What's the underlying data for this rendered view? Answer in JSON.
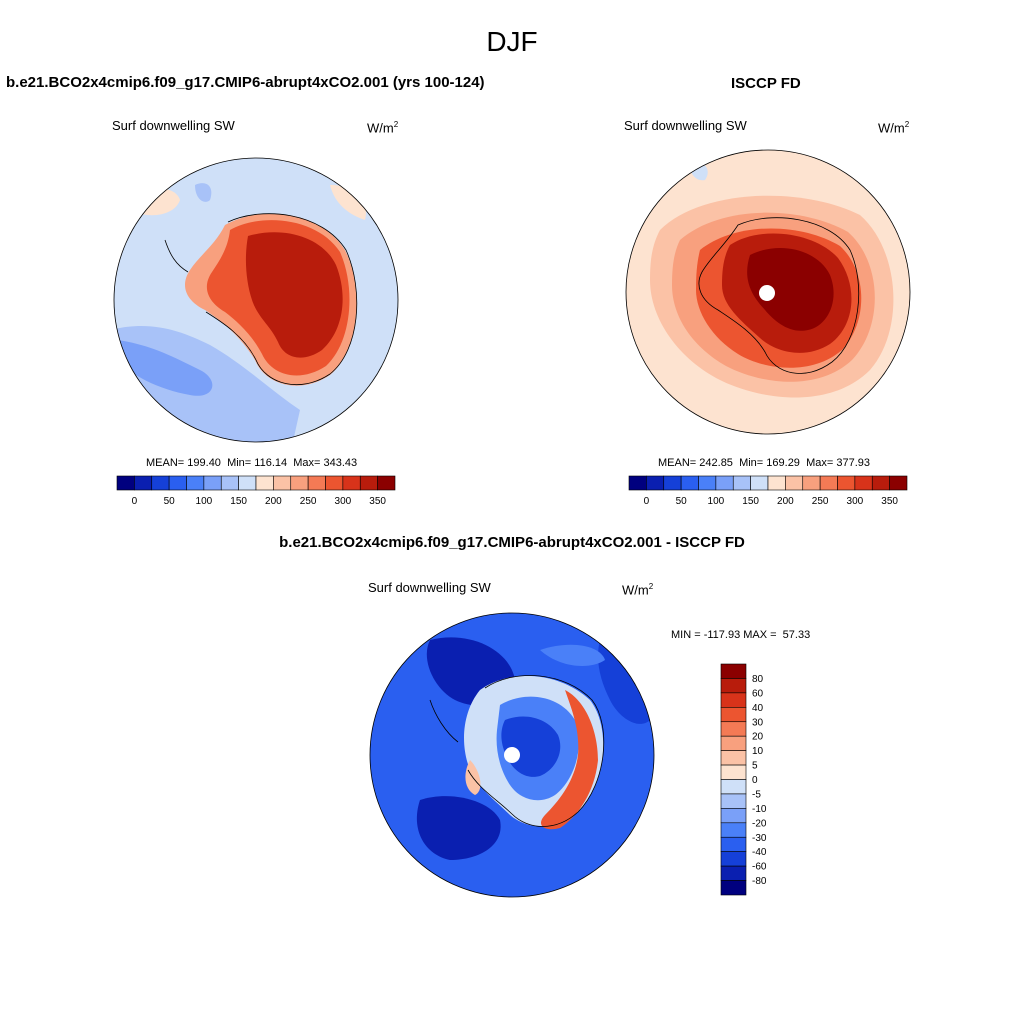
{
  "main_title": "DJF",
  "panels": [
    {
      "title": "b.e21.BCO2x4cmip6.f09_g17.CMIP6-abrupt4xCO2.001 (yrs 100-124)",
      "variable": "Surf downwelling SW",
      "unit": "W/m",
      "unit_sup": "2",
      "stats": {
        "mean_label": "MEAN=",
        "mean": "199.40",
        "min_label": "Min=",
        "min": "116.14",
        "max_label": "Max=",
        "max": "343.43"
      }
    },
    {
      "title": "ISCCP FD",
      "variable": "Surf downwelling SW",
      "unit": "W/m",
      "unit_sup": "2",
      "stats": {
        "mean_label": "MEAN=",
        "mean": "242.85",
        "min_label": "Min=",
        "min": "169.29",
        "max_label": "Max=",
        "max": "377.93"
      }
    },
    {
      "title": "b.e21.BCO2x4cmip6.f09_g17.CMIP6-abrupt4xCO2.001 - ISCCP FD",
      "variable": "Surf downwelling SW",
      "unit": "W/m",
      "unit_sup": "2",
      "stats_text": "MIN = -117.93 MAX =  57.33"
    }
  ],
  "colorbar_abs": {
    "ticks": [
      "0",
      "50",
      "100",
      "150",
      "200",
      "250",
      "300",
      "350"
    ],
    "colors": [
      "#00007f",
      "#0a1fb0",
      "#1540d8",
      "#2a5ff0",
      "#4a80f8",
      "#7aa0f8",
      "#a8c2f8",
      "#cfe0f8",
      "#fde3d0",
      "#fbc2a6",
      "#f8a07e",
      "#f47a55",
      "#ec5530",
      "#d8331a",
      "#b81c0c",
      "#8b0000"
    ]
  },
  "colorbar_diff": {
    "ticks": [
      "80",
      "60",
      "40",
      "30",
      "20",
      "10",
      "5",
      "0",
      "-5",
      "-10",
      "-20",
      "-30",
      "-40",
      "-60",
      "-80"
    ],
    "colors": [
      "#8b0000",
      "#b81c0c",
      "#d8331a",
      "#ec5530",
      "#f47a55",
      "#f8a07e",
      "#fbc2a6",
      "#fde3d0",
      "#cfe0f8",
      "#a8c2f8",
      "#7aa0f8",
      "#4a80f8",
      "#2a5ff0",
      "#1540d8",
      "#0a1fb0",
      "#00007f"
    ]
  },
  "colors": {
    "background": "#ffffff",
    "ocean_light": "#cfe0f8",
    "land_dark_red": "#b81c0c",
    "deep_blue": "#0a1fb0"
  }
}
